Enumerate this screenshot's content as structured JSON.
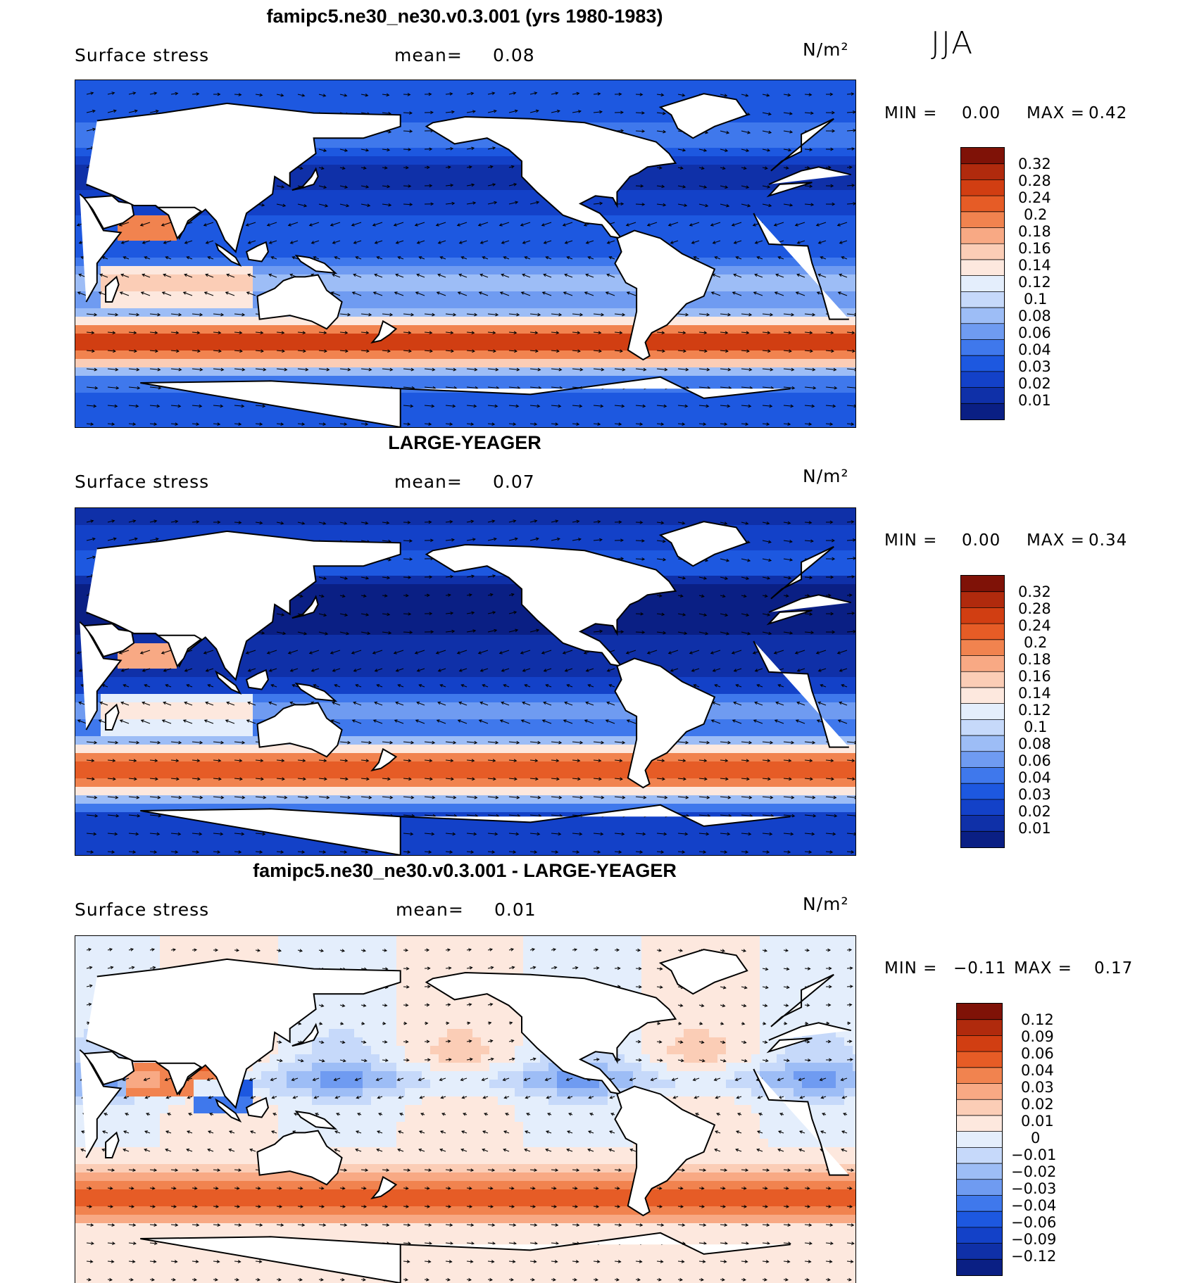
{
  "season": "JJA",
  "colors": {
    "abs_scale": [
      "#0a1f84",
      "#0f30a8",
      "#1341c8",
      "#1d58e0",
      "#3f78ec",
      "#6f9bf1",
      "#9dbdf6",
      "#c6d9fa",
      "#e4eefc",
      "#fde8de",
      "#fbcdb6",
      "#f8a984",
      "#f1834f",
      "#e65c26",
      "#d13e12",
      "#b02a0d",
      "#7f1207"
    ],
    "diff_scale": [
      "#0a1f84",
      "#0f30a8",
      "#1341c8",
      "#1d58e0",
      "#3f78ec",
      "#6f9bf1",
      "#9dbdf6",
      "#c6d9fa",
      "#e4eefc",
      "#fde8de",
      "#fbcdb6",
      "#f8a984",
      "#f1834f",
      "#e65c26",
      "#d13e12",
      "#b02a0d",
      "#7f1207"
    ]
  },
  "panels": [
    {
      "title": "famipc5.ne30_ne30.v0.3.001 (yrs 1980-1983)",
      "variable": "Surface stress",
      "mean_label": "mean=",
      "mean_value": "0.08",
      "units": "N/m²",
      "min_label": "MIN =",
      "min_value": "0.00",
      "max_label": "MAX =",
      "max_value": "0.42",
      "colorbar_labels": [
        "0.32",
        "0.28",
        "0.24",
        "0.2",
        "0.18",
        "0.16",
        "0.14",
        "0.12",
        "0.1",
        "0.08",
        "0.06",
        "0.04",
        "0.03",
        "0.02",
        "0.01"
      ]
    },
    {
      "title": "LARGE-YEAGER",
      "variable": "Surface stress",
      "mean_label": "mean=",
      "mean_value": "0.07",
      "units": "N/m²",
      "min_label": "MIN =",
      "min_value": "0.00",
      "max_label": "MAX =",
      "max_value": "0.34",
      "colorbar_labels": [
        "0.32",
        "0.28",
        "0.24",
        "0.2",
        "0.18",
        "0.16",
        "0.14",
        "0.12",
        "0.1",
        "0.08",
        "0.06",
        "0.04",
        "0.03",
        "0.02",
        "0.01"
      ]
    },
    {
      "title": "famipc5.ne30_ne30.v0.3.001 - LARGE-YEAGER",
      "variable": "Surface stress",
      "mean_label": "mean=",
      "mean_value": "0.01",
      "units": "N/m²",
      "min_label": "MIN =",
      "min_value": "−0.11",
      "max_label": "MAX =",
      "max_value": "0.17",
      "colorbar_labels": [
        "0.12",
        "0.09",
        "0.06",
        "0.04",
        "0.03",
        "0.02",
        "0.01",
        "0",
        "−0.01",
        "−0.02",
        "−0.03",
        "−0.04",
        "−0.06",
        "−0.09",
        "−0.12"
      ]
    }
  ]
}
